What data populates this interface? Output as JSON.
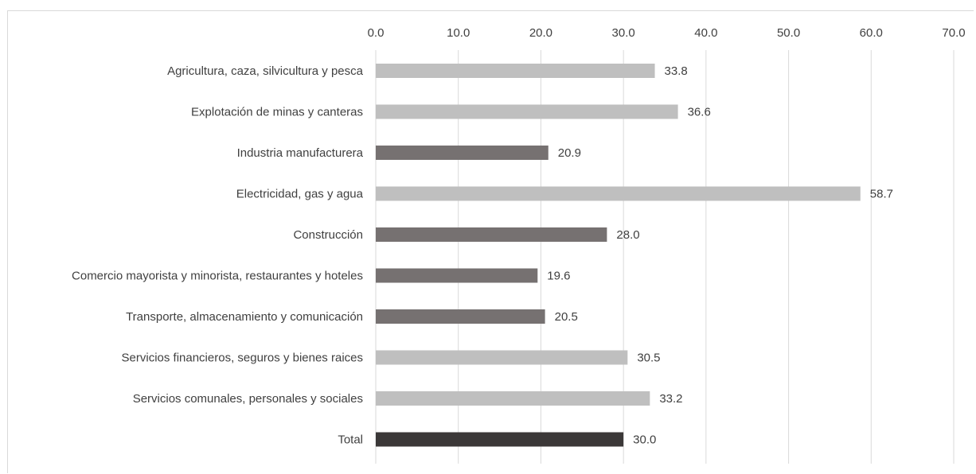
{
  "chart_data": {
    "type": "bar",
    "orientation": "horizontal",
    "title": "",
    "xlabel": "",
    "ylabel": "",
    "xlim": [
      0,
      70
    ],
    "x_ticks": [
      "0.0",
      "10.0",
      "20.0",
      "30.0",
      "40.0",
      "50.0",
      "60.0",
      "70.0"
    ],
    "x_axis_position": "top",
    "grid": "vertical",
    "legend": "none",
    "categories": [
      "Agricultura, caza, silvicultura y pesca",
      "Explotación de minas y canteras",
      "Industria manufacturera",
      "Electricidad, gas y agua",
      "Construcción",
      "Comercio mayorista y minorista, restaurantes y hoteles",
      "Transporte, almacenamiento y comunicación",
      "Servicios financieros, seguros y bienes raices",
      "Servicios comunales, personales y sociales",
      "Total"
    ],
    "values": [
      33.8,
      36.6,
      20.9,
      58.7,
      28.0,
      19.6,
      20.5,
      30.5,
      33.2,
      30.0
    ],
    "value_labels": [
      "33.8",
      "36.6",
      "20.9",
      "58.7",
      "28.0",
      "19.6",
      "20.5",
      "30.5",
      "33.2",
      "30.0"
    ],
    "bar_colors": [
      "#bfbfbf",
      "#bfbfbf",
      "#767171",
      "#bfbfbf",
      "#767171",
      "#767171",
      "#767171",
      "#bfbfbf",
      "#bfbfbf",
      "#3b3838"
    ]
  }
}
